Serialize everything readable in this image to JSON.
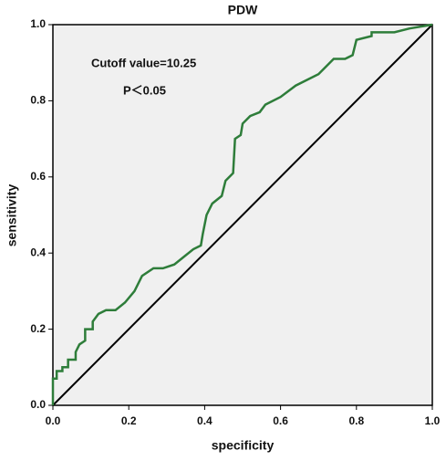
{
  "chart_data": {
    "type": "line",
    "title": "PDW",
    "xlabel": "specificity",
    "ylabel": "sensitivity",
    "annotations": [
      "Cutoff value=10.25",
      "P＜0.05"
    ],
    "color": "#2e7d3a",
    "x": [
      0,
      0,
      0.01,
      0.01,
      0.025,
      0.025,
      0.04,
      0.04,
      0.06,
      0.06,
      0.07,
      0.085,
      0.085,
      0.105,
      0.105,
      0.12,
      0.14,
      0.165,
      0.19,
      0.215,
      0.235,
      0.265,
      0.29,
      0.32,
      0.345,
      0.37,
      0.39,
      0.395,
      0.405,
      0.42,
      0.445,
      0.455,
      0.475,
      0.48,
      0.495,
      0.5,
      0.52,
      0.545,
      0.56,
      0.6,
      0.64,
      0.7,
      0.74,
      0.77,
      0.79,
      0.8,
      0.84,
      0.84,
      0.9,
      0.94,
      1
    ],
    "values": [
      0,
      0.07,
      0.07,
      0.09,
      0.09,
      0.1,
      0.1,
      0.12,
      0.12,
      0.14,
      0.16,
      0.17,
      0.2,
      0.2,
      0.22,
      0.24,
      0.25,
      0.25,
      0.27,
      0.3,
      0.34,
      0.36,
      0.36,
      0.37,
      0.39,
      0.41,
      0.42,
      0.45,
      0.5,
      0.53,
      0.55,
      0.59,
      0.61,
      0.7,
      0.71,
      0.74,
      0.76,
      0.77,
      0.79,
      0.81,
      0.84,
      0.87,
      0.91,
      0.91,
      0.92,
      0.96,
      0.97,
      0.98,
      0.98,
      0.99,
      1
    ],
    "xlim": [
      0,
      1
    ],
    "ylim": [
      0,
      1
    ],
    "xticks": [
      {
        "value": 0,
        "label": "0.0"
      },
      {
        "value": 0.2,
        "label": "0.2"
      },
      {
        "value": 0.4,
        "label": "0.4"
      },
      {
        "value": 0.6,
        "label": "0.6"
      },
      {
        "value": 0.8,
        "label": "0.8"
      },
      {
        "value": 1,
        "label": "1.0"
      }
    ],
    "yticks": [
      {
        "value": 0,
        "label": "0.0"
      },
      {
        "value": 0.2,
        "label": "0.2"
      },
      {
        "value": 0.4,
        "label": "0.4"
      },
      {
        "value": 0.6,
        "label": "0.6"
      },
      {
        "value": 0.8,
        "label": "0.8"
      },
      {
        "value": 1,
        "label": "1.0"
      }
    ]
  }
}
